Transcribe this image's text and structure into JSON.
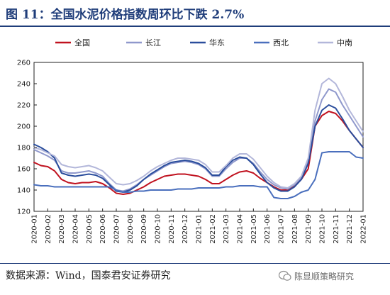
{
  "title": "图 11：全国水泥价格指数周环比下跌 2.7%",
  "source": "数据来源：Wind，国泰君安证券研究",
  "watermark": "陈显顺策略研究",
  "chart_data": {
    "type": "line",
    "ylim": [
      120,
      260
    ],
    "yticks": [
      120,
      140,
      160,
      180,
      200,
      220,
      240,
      260
    ],
    "xticks": [
      "2020-01",
      "2020-02",
      "2020-03",
      "2020-04",
      "2020-05",
      "2020-06",
      "2020-07",
      "2020-08",
      "2020-09",
      "2020-10",
      "2020-11",
      "2020-12",
      "2021-01",
      "2021-02",
      "2021-03",
      "2021-04",
      "2021-05",
      "2021-06",
      "2021-07",
      "2021-08",
      "2021-09",
      "2021-10",
      "2021-11",
      "2021-12",
      "2022-01"
    ],
    "legend_position": "top",
    "grid": false,
    "series": [
      {
        "name": "全国",
        "color": "#c0121f",
        "width": 2,
        "points": [
          [
            0,
            166
          ],
          [
            0.5,
            163
          ],
          [
            1,
            162
          ],
          [
            1.5,
            158
          ],
          [
            2,
            150
          ],
          [
            2.5,
            147
          ],
          [
            3,
            146
          ],
          [
            3.5,
            147
          ],
          [
            4,
            147
          ],
          [
            4.5,
            148
          ],
          [
            5,
            146
          ],
          [
            5.5,
            142
          ],
          [
            6,
            137
          ],
          [
            6.5,
            136
          ],
          [
            7,
            137
          ],
          [
            7.5,
            140
          ],
          [
            8,
            143
          ],
          [
            8.5,
            147
          ],
          [
            9,
            150
          ],
          [
            9.5,
            153
          ],
          [
            10,
            154
          ],
          [
            10.5,
            155
          ],
          [
            11,
            155
          ],
          [
            11.5,
            154
          ],
          [
            12,
            153
          ],
          [
            12.5,
            150
          ],
          [
            13,
            146
          ],
          [
            13.5,
            146
          ],
          [
            14,
            150
          ],
          [
            14.5,
            154
          ],
          [
            15,
            157
          ],
          [
            15.5,
            158
          ],
          [
            16,
            156
          ],
          [
            16.5,
            151
          ],
          [
            17,
            147
          ],
          [
            17.5,
            143
          ],
          [
            18,
            140
          ],
          [
            18.5,
            140
          ],
          [
            19,
            144
          ],
          [
            19.5,
            150
          ],
          [
            20,
            160
          ],
          [
            20.5,
            200
          ],
          [
            21,
            210
          ],
          [
            21.5,
            214
          ],
          [
            22,
            212
          ],
          [
            22.5,
            205
          ],
          [
            23,
            196
          ],
          [
            23.5,
            188
          ],
          [
            24,
            180
          ]
        ]
      },
      {
        "name": "长江",
        "color": "#8f98cc",
        "width": 2,
        "points": [
          [
            0,
            178
          ],
          [
            0.5,
            175
          ],
          [
            1,
            172
          ],
          [
            1.5,
            168
          ],
          [
            2,
            158
          ],
          [
            2.5,
            156
          ],
          [
            3,
            156
          ],
          [
            3.5,
            157
          ],
          [
            4,
            158
          ],
          [
            4.5,
            156
          ],
          [
            5,
            153
          ],
          [
            5.5,
            146
          ],
          [
            6,
            140
          ],
          [
            6.5,
            139
          ],
          [
            7,
            141
          ],
          [
            7.5,
            145
          ],
          [
            8,
            150
          ],
          [
            8.5,
            154
          ],
          [
            9,
            158
          ],
          [
            9.5,
            162
          ],
          [
            10,
            165
          ],
          [
            10.5,
            166
          ],
          [
            11,
            167
          ],
          [
            11.5,
            166
          ],
          [
            12,
            164
          ],
          [
            12.5,
            160
          ],
          [
            13,
            153
          ],
          [
            13.5,
            153
          ],
          [
            14,
            160
          ],
          [
            14.5,
            166
          ],
          [
            15,
            170
          ],
          [
            15.5,
            170
          ],
          [
            16,
            165
          ],
          [
            16.5,
            157
          ],
          [
            17,
            150
          ],
          [
            17.5,
            145
          ],
          [
            18,
            142
          ],
          [
            18.5,
            141
          ],
          [
            19,
            145
          ],
          [
            19.5,
            152
          ],
          [
            20,
            168
          ],
          [
            20.5,
            205
          ],
          [
            21,
            225
          ],
          [
            21.5,
            235
          ],
          [
            22,
            232
          ],
          [
            22.5,
            220
          ],
          [
            23,
            210
          ],
          [
            23.5,
            200
          ],
          [
            24,
            190
          ]
        ]
      },
      {
        "name": "华东",
        "color": "#2a4d9c",
        "width": 2,
        "points": [
          [
            0,
            183
          ],
          [
            0.5,
            180
          ],
          [
            1,
            176
          ],
          [
            1.5,
            170
          ],
          [
            2,
            156
          ],
          [
            2.5,
            154
          ],
          [
            3,
            153
          ],
          [
            3.5,
            154
          ],
          [
            4,
            155
          ],
          [
            4.5,
            154
          ],
          [
            5,
            151
          ],
          [
            5.5,
            145
          ],
          [
            6,
            139
          ],
          [
            6.5,
            138
          ],
          [
            7,
            140
          ],
          [
            7.5,
            144
          ],
          [
            8,
            150
          ],
          [
            8.5,
            155
          ],
          [
            9,
            159
          ],
          [
            9.5,
            163
          ],
          [
            10,
            166
          ],
          [
            10.5,
            167
          ],
          [
            11,
            168
          ],
          [
            11.5,
            167
          ],
          [
            12,
            165
          ],
          [
            12.5,
            161
          ],
          [
            13,
            154
          ],
          [
            13.5,
            154
          ],
          [
            14,
            162
          ],
          [
            14.5,
            168
          ],
          [
            15,
            171
          ],
          [
            15.5,
            170
          ],
          [
            16,
            164
          ],
          [
            16.5,
            155
          ],
          [
            17,
            147
          ],
          [
            17.5,
            142
          ],
          [
            18,
            139
          ],
          [
            18.5,
            139
          ],
          [
            19,
            143
          ],
          [
            19.5,
            150
          ],
          [
            20,
            165
          ],
          [
            20.5,
            200
          ],
          [
            21,
            215
          ],
          [
            21.5,
            220
          ],
          [
            22,
            217
          ],
          [
            22.5,
            207
          ],
          [
            23,
            196
          ],
          [
            23.5,
            188
          ],
          [
            24,
            180
          ]
        ]
      },
      {
        "name": "西北",
        "color": "#4a6fbd",
        "width": 2,
        "points": [
          [
            0,
            145
          ],
          [
            0.5,
            144
          ],
          [
            1,
            144
          ],
          [
            1.5,
            143
          ],
          [
            2,
            143
          ],
          [
            2.5,
            143
          ],
          [
            3,
            143
          ],
          [
            3.5,
            143
          ],
          [
            4,
            143
          ],
          [
            4.5,
            143
          ],
          [
            5,
            143
          ],
          [
            5.5,
            143
          ],
          [
            6,
            140
          ],
          [
            6.5,
            138
          ],
          [
            7,
            138
          ],
          [
            7.5,
            139
          ],
          [
            8,
            139
          ],
          [
            8.5,
            140
          ],
          [
            9,
            140
          ],
          [
            9.5,
            140
          ],
          [
            10,
            140
          ],
          [
            10.5,
            141
          ],
          [
            11,
            141
          ],
          [
            11.5,
            141
          ],
          [
            12,
            142
          ],
          [
            12.5,
            142
          ],
          [
            13,
            142
          ],
          [
            13.5,
            142
          ],
          [
            14,
            143
          ],
          [
            14.5,
            143
          ],
          [
            15,
            144
          ],
          [
            15.5,
            144
          ],
          [
            16,
            144
          ],
          [
            16.5,
            143
          ],
          [
            17,
            143
          ],
          [
            17.5,
            133
          ],
          [
            18,
            132
          ],
          [
            18.5,
            132
          ],
          [
            19,
            134
          ],
          [
            19.5,
            138
          ],
          [
            20,
            140
          ],
          [
            20.5,
            150
          ],
          [
            21,
            175
          ],
          [
            21.5,
            176
          ],
          [
            22,
            176
          ],
          [
            22.5,
            176
          ],
          [
            23,
            176
          ],
          [
            23.5,
            171
          ],
          [
            24,
            170
          ]
        ]
      },
      {
        "name": "中南",
        "color": "#b3b7da",
        "width": 2,
        "points": [
          [
            0,
            180
          ],
          [
            0.5,
            178
          ],
          [
            1,
            175
          ],
          [
            1.5,
            172
          ],
          [
            2,
            164
          ],
          [
            2.5,
            162
          ],
          [
            3,
            161
          ],
          [
            3.5,
            162
          ],
          [
            4,
            163
          ],
          [
            4.5,
            161
          ],
          [
            5,
            158
          ],
          [
            5.5,
            152
          ],
          [
            6,
            146
          ],
          [
            6.5,
            145
          ],
          [
            7,
            146
          ],
          [
            7.5,
            149
          ],
          [
            8,
            153
          ],
          [
            8.5,
            158
          ],
          [
            9,
            162
          ],
          [
            9.5,
            165
          ],
          [
            10,
            168
          ],
          [
            10.5,
            170
          ],
          [
            11,
            170
          ],
          [
            11.5,
            169
          ],
          [
            12,
            168
          ],
          [
            12.5,
            164
          ],
          [
            13,
            157
          ],
          [
            13.5,
            157
          ],
          [
            14,
            163
          ],
          [
            14.5,
            170
          ],
          [
            15,
            174
          ],
          [
            15.5,
            174
          ],
          [
            16,
            169
          ],
          [
            16.5,
            161
          ],
          [
            17,
            153
          ],
          [
            17.5,
            147
          ],
          [
            18,
            143
          ],
          [
            18.5,
            142
          ],
          [
            19,
            146
          ],
          [
            19.5,
            153
          ],
          [
            20,
            170
          ],
          [
            20.5,
            215
          ],
          [
            21,
            240
          ],
          [
            21.5,
            245
          ],
          [
            22,
            240
          ],
          [
            22.5,
            228
          ],
          [
            23,
            215
          ],
          [
            23.5,
            205
          ],
          [
            24,
            195
          ]
        ]
      }
    ]
  }
}
